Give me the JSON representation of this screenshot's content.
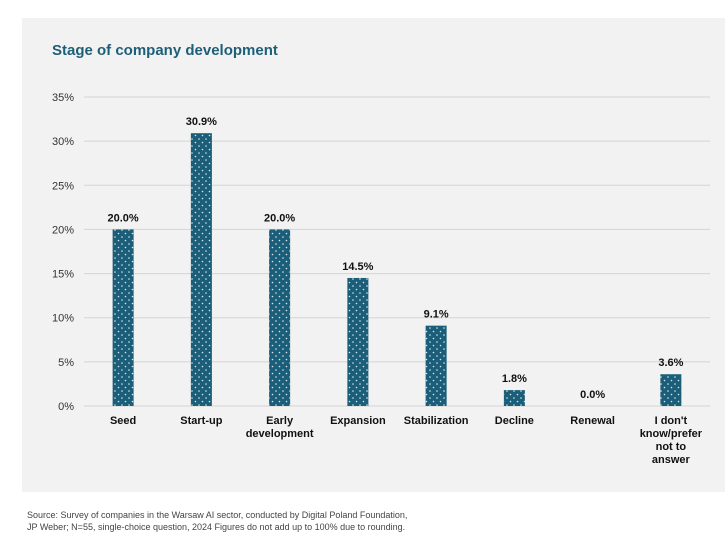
{
  "chart_data": {
    "type": "bar",
    "title": "Stage of company development",
    "categories": [
      "Seed",
      "Start-up",
      "Early development",
      "Expansion",
      "Stabilization",
      "Decline",
      "Renewal",
      "I don't know/prefer not to answer"
    ],
    "category_lines": [
      [
        "Seed"
      ],
      [
        "Start-up"
      ],
      [
        "Early",
        "development"
      ],
      [
        "Expansion"
      ],
      [
        "Stabilization"
      ],
      [
        "Decline"
      ],
      [
        "Renewal"
      ],
      [
        "I don't",
        "know/prefer",
        "not to",
        "answer"
      ]
    ],
    "values": [
      20.0,
      30.9,
      20.0,
      14.5,
      9.1,
      1.8,
      0.0,
      3.6
    ],
    "value_labels": [
      "20.0%",
      "30.9%",
      "20.0%",
      "14.5%",
      "9.1%",
      "1.8%",
      "0.0%",
      "3.6%"
    ],
    "ylim": [
      0,
      35
    ],
    "yticks": [
      0,
      5,
      10,
      15,
      20,
      25,
      30,
      35
    ],
    "ytick_labels": [
      "0%",
      "5%",
      "10%",
      "15%",
      "20%",
      "25%",
      "30%",
      "35%"
    ],
    "xlabel": "",
    "ylabel": "",
    "grid": true,
    "bar_color": "#1b5e79"
  },
  "source": {
    "line1": "Source: Survey of companies in the Warsaw AI sector, conducted by Digital Poland Foundation,",
    "line2": "JP Weber; N=55, single-choice question, 2024 Figures do not add up to 100% due to rounding."
  }
}
